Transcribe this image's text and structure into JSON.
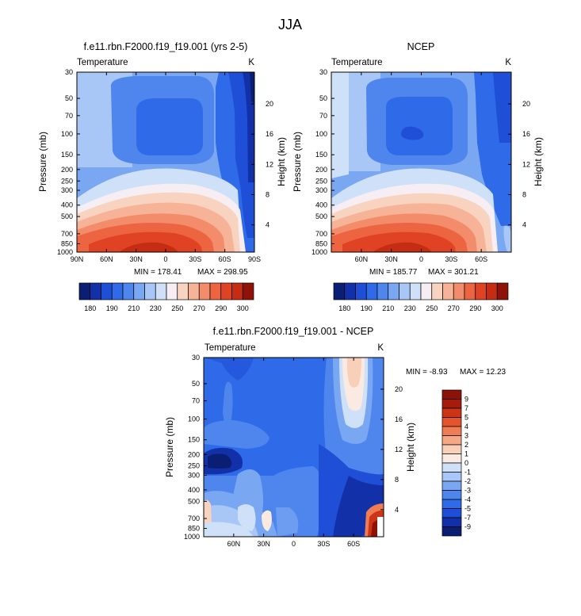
{
  "figure": {
    "title": "JJA"
  },
  "colors": {
    "abs_levels": [
      "#0a1e74",
      "#1231a8",
      "#1f4fd6",
      "#2f6ae8",
      "#4f86ee",
      "#7aa7f2",
      "#a8c6f6",
      "#cfe0f9",
      "#f6eef2",
      "#f8d3c0",
      "#f7b397",
      "#f38c6a",
      "#ec6440",
      "#df4323",
      "#c52d13",
      "#8e1208"
    ],
    "diff_levels": [
      "#0a1e74",
      "#1231a8",
      "#1f4fd6",
      "#2f6ae8",
      "#4f86ee",
      "#7aa7f2",
      "#a8c6f6",
      "#cfe0f9",
      "#fbeae2",
      "#f8cfb9",
      "#f5a786",
      "#ef7c55",
      "#e4552e",
      "#cc3516",
      "#a61c0c",
      "#8e1208"
    ]
  },
  "chart_data": [
    {
      "type": "heatmap",
      "title": "f.e11.rbn.F2000.f19_f19.001 (yrs 2-5)",
      "left_label": "Temperature",
      "units": "K",
      "ylabel": "Pressure (mb)",
      "y2label": "Height (km)",
      "x_ticks": [
        "90N",
        "60N",
        "30N",
        "0",
        "30S",
        "60S",
        "90S"
      ],
      "x_values": [
        90,
        60,
        30,
        0,
        -30,
        -60,
        -90
      ],
      "xlim": [
        90,
        -90
      ],
      "y_ticks": [
        "30",
        "50",
        "70",
        "100",
        "150",
        "200",
        "250",
        "300",
        "400",
        "500",
        "700",
        "850",
        "1000"
      ],
      "y_values": [
        30,
        50,
        70,
        100,
        150,
        200,
        250,
        300,
        400,
        500,
        700,
        850,
        1000
      ],
      "ylim": [
        30,
        1000
      ],
      "y2_ticks": [
        "20",
        "16",
        "12",
        "8",
        "4"
      ],
      "y2_values": [
        20,
        16,
        12,
        8,
        4
      ],
      "min_label": "MIN = 178.41",
      "max_label": "MAX = 298.95",
      "min": 178.41,
      "max": 298.95,
      "colorbar": {
        "labels": [
          "180",
          "190",
          "210",
          "230",
          "250",
          "270",
          "290",
          "300"
        ],
        "level_count": 16
      }
    },
    {
      "type": "heatmap",
      "title": "NCEP",
      "left_label": "Temperature",
      "units": "K",
      "ylabel": "Pressure (mb)",
      "y2label": "Height (km)",
      "x_ticks": [
        "60N",
        "30N",
        "0",
        "30S",
        "60S"
      ],
      "x_values": [
        60,
        30,
        0,
        -30,
        -60
      ],
      "xlim": [
        90,
        -90
      ],
      "y_ticks": [
        "30",
        "50",
        "70",
        "100",
        "150",
        "200",
        "250",
        "300",
        "400",
        "500",
        "700",
        "850",
        "1000"
      ],
      "y_values": [
        30,
        50,
        70,
        100,
        150,
        200,
        250,
        300,
        400,
        500,
        700,
        850,
        1000
      ],
      "ylim": [
        30,
        1000
      ],
      "y2_ticks": [
        "20",
        "16",
        "12",
        "8",
        "4"
      ],
      "y2_values": [
        20,
        16,
        12,
        8,
        4
      ],
      "min_label": "MIN = 185.77",
      "max_label": "MAX = 301.21",
      "min": 185.77,
      "max": 301.21,
      "colorbar": {
        "labels": [
          "180",
          "190",
          "210",
          "230",
          "250",
          "270",
          "290",
          "300"
        ],
        "level_count": 16
      }
    },
    {
      "type": "heatmap",
      "title": "f.e11.rbn.F2000.f19_f19.001 - NCEP",
      "left_label": "Temperature",
      "units": "K",
      "ylabel": "Pressure (mb)",
      "y2label": "Height (km)",
      "x_ticks": [
        "60N",
        "30N",
        "0",
        "30S",
        "60S"
      ],
      "x_values": [
        60,
        30,
        0,
        -30,
        -60
      ],
      "xlim": [
        90,
        -90
      ],
      "y_ticks": [
        "30",
        "50",
        "70",
        "100",
        "150",
        "200",
        "250",
        "300",
        "400",
        "500",
        "700",
        "850",
        "1000"
      ],
      "y_values": [
        30,
        50,
        70,
        100,
        150,
        200,
        250,
        300,
        400,
        500,
        700,
        850,
        1000
      ],
      "ylim": [
        30,
        1000
      ],
      "y2_ticks": [
        "20",
        "16",
        "12",
        "8",
        "4"
      ],
      "y2_values": [
        20,
        16,
        12,
        8,
        4
      ],
      "min_label": "MIN =  -8.93",
      "max_label": "MAX =  12.23",
      "min": -8.93,
      "max": 12.23,
      "colorbar": {
        "labels": [
          "9",
          "7",
          "5",
          "4",
          "3",
          "2",
          "1",
          "0",
          "-1",
          "-2",
          "-3",
          "-4",
          "-5",
          "-7",
          "-9"
        ],
        "level_count": 16
      }
    }
  ]
}
